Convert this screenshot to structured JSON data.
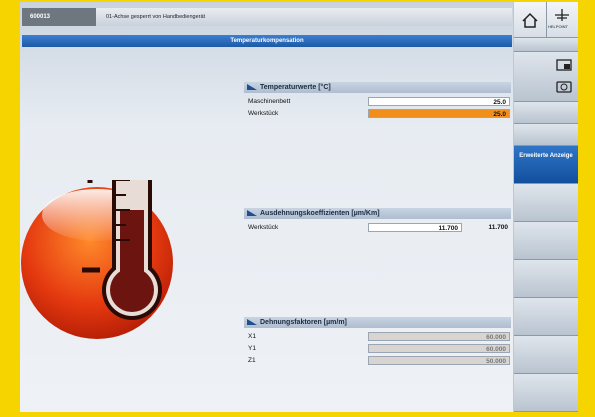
{
  "header": {
    "alarm_number": "600013",
    "message": "01-Achse gesperrt von Handbediengerät"
  },
  "title": "Temperaturkompensation",
  "softkeys": {
    "help": "HELPOINT",
    "extended": "Erweiterte Anzeige"
  },
  "panels": [
    {
      "title": "Temperaturwerte [°C]",
      "rows": [
        {
          "label": "Maschinenbett",
          "value": "25.0"
        },
        {
          "label": "Werkstück",
          "value": "25.0"
        }
      ]
    },
    {
      "title": "Ausdehnungskoeffizienten [µm/Km]",
      "rows": [
        {
          "label": "Werkstück",
          "value": "11.700",
          "value2": "11.700"
        }
      ]
    },
    {
      "title": "Dehnungsfaktoren [µm/m]",
      "rows": [
        {
          "label": "X1",
          "value": "60.000"
        },
        {
          "label": "Y1",
          "value": "60.000"
        },
        {
          "label": "Z1",
          "value": "50.000"
        }
      ]
    }
  ]
}
